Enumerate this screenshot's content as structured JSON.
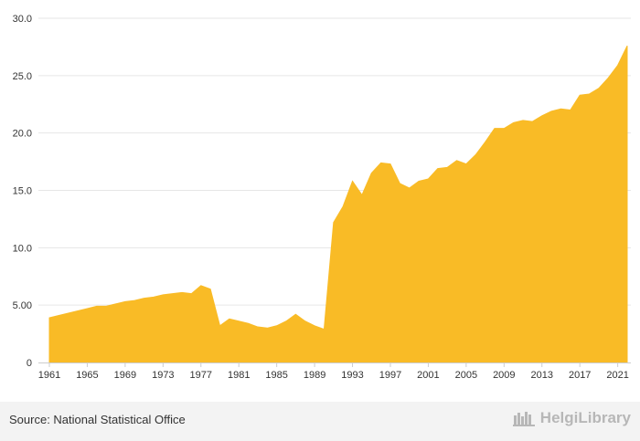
{
  "chart_data": {
    "type": "area",
    "x": [
      1961,
      1962,
      1963,
      1964,
      1965,
      1966,
      1967,
      1968,
      1969,
      1970,
      1971,
      1972,
      1973,
      1974,
      1975,
      1976,
      1977,
      1978,
      1979,
      1980,
      1981,
      1982,
      1983,
      1984,
      1985,
      1986,
      1987,
      1988,
      1989,
      1990,
      1991,
      1992,
      1993,
      1994,
      1995,
      1996,
      1997,
      1998,
      1999,
      2000,
      2001,
      2002,
      2003,
      2004,
      2005,
      2006,
      2007,
      2008,
      2009,
      2010,
      2011,
      2012,
      2013,
      2014,
      2015,
      2016,
      2017,
      2018,
      2019,
      2020,
      2021,
      2022
    ],
    "values": [
      3.9,
      4.1,
      4.3,
      4.5,
      4.7,
      4.9,
      4.9,
      5.1,
      5.3,
      5.4,
      5.6,
      5.7,
      5.9,
      6.0,
      6.1,
      6.0,
      6.7,
      6.4,
      3.2,
      3.8,
      3.6,
      3.4,
      3.1,
      3.0,
      3.2,
      3.6,
      4.2,
      3.6,
      3.2,
      2.9,
      12.2,
      13.6,
      15.8,
      14.6,
      16.5,
      17.4,
      17.3,
      15.6,
      15.2,
      15.8,
      16.0,
      16.9,
      17.0,
      17.6,
      17.3,
      18.1,
      19.2,
      20.4,
      20.4,
      20.9,
      21.1,
      21.0,
      21.5,
      21.9,
      22.1,
      22.0,
      23.3,
      23.4,
      23.9,
      24.8,
      25.9,
      27.6
    ],
    "xticks": [
      "1961",
      "1965",
      "1969",
      "1973",
      "1977",
      "1981",
      "1985",
      "1989",
      "1993",
      "1997",
      "2001",
      "2005",
      "2009",
      "2013",
      "2017",
      "2021"
    ],
    "yticks": [
      "0",
      "5.00",
      "10.0",
      "15.0",
      "20.0",
      "25.0",
      "30.0"
    ],
    "ylim": [
      0,
      30
    ],
    "grid": true,
    "legend": "none",
    "color": "#f9bb26"
  },
  "footer": {
    "source": "Source: National Statistical Office",
    "brand": "HelgiLibrary"
  }
}
